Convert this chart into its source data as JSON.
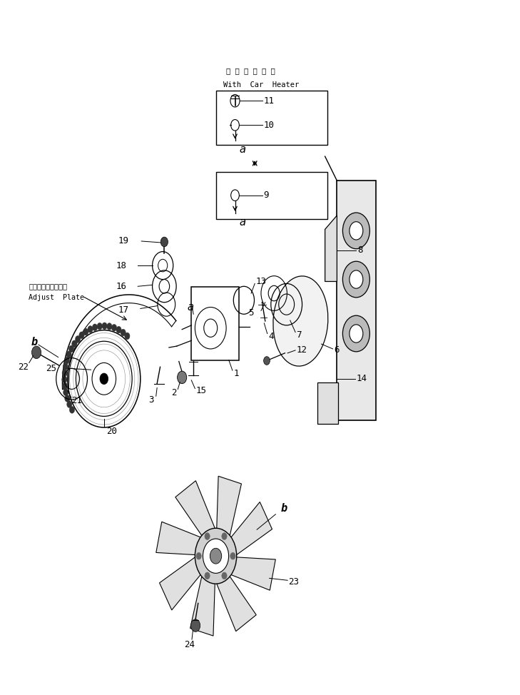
{
  "bg_color": "#ffffff",
  "fig_width": 7.29,
  "fig_height": 9.74,
  "dpi": 100,
  "japanese_header": "カ ー ヒ ー タ 付",
  "english_header": "With  Car  Heater",
  "adjust_plate_jp": "アジャストプレート",
  "adjust_plate_en": "Adjust  Plate"
}
